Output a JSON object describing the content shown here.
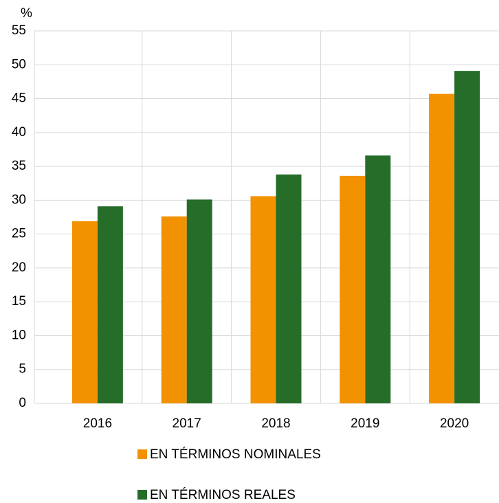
{
  "chart_data": {
    "type": "bar",
    "y_unit": "%",
    "categories": [
      "2016",
      "2017",
      "2018",
      "2019",
      "2020"
    ],
    "series": [
      {
        "name": "EN TÉRMINOS NOMINALES",
        "color": "#f39200",
        "values": [
          26.9,
          27.6,
          30.6,
          33.6,
          45.7
        ]
      },
      {
        "name": "EN TÉRMINOS REALES",
        "color": "#266d2a",
        "values": [
          29.1,
          30.1,
          33.8,
          36.6,
          49.1
        ]
      }
    ],
    "ylim": [
      0,
      55
    ],
    "yticks": [
      0,
      5,
      10,
      15,
      20,
      25,
      30,
      35,
      40,
      45,
      50,
      55
    ],
    "grid": true,
    "legend": "bottom"
  }
}
